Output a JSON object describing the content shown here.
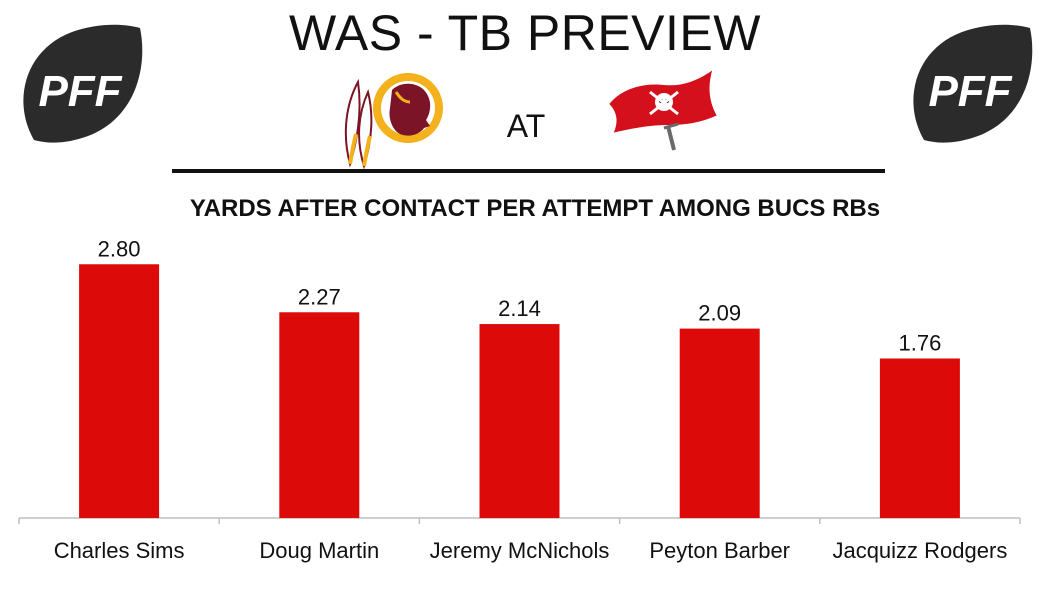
{
  "header": {
    "title": "WAS - TB PREVIEW",
    "matchup_word": "AT",
    "brand_logo_text": "PFF"
  },
  "logos": {
    "left_brand": "pff-football-logo",
    "right_brand": "pff-football-logo",
    "away_team": "washington-team-logo",
    "home_team": "tampa-bay-flag-logo"
  },
  "colors": {
    "bar": "#dd0a0a",
    "logo_dark": "#2b2b2b",
    "washington_burgundy": "#7a1426",
    "washington_gold": "#f3b21b",
    "tampa_red": "#d3101b"
  },
  "chart_data": {
    "type": "bar",
    "title": "YARDS AFTER CONTACT PER ATTEMPT AMONG BUCS RBs",
    "categories": [
      "Charles Sims",
      "Doug Martin",
      "Jeremy McNichols",
      "Peyton Barber",
      "Jacquizz Rodgers"
    ],
    "values": [
      2.8,
      2.27,
      2.14,
      2.09,
      1.76
    ],
    "data_labels": [
      "2.80",
      "2.27",
      "2.14",
      "2.09",
      "1.76"
    ],
    "xlabel": "",
    "ylabel": "",
    "ylim": [
      0,
      3.2
    ],
    "grid": false,
    "legend": "none"
  }
}
